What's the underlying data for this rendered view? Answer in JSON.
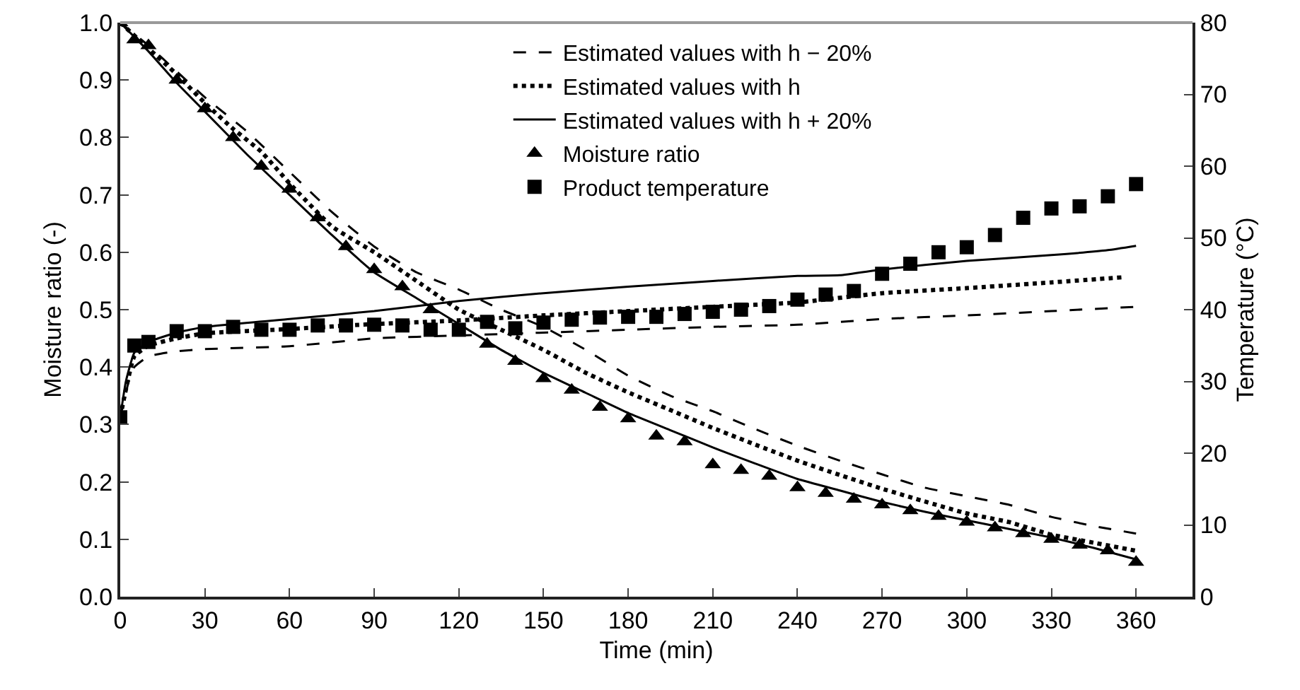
{
  "chart_data": {
    "type": "line",
    "xlabel": "Time (min)",
    "ylabel": "Moisture ratio (-)",
    "y2label": "Temperature (°C)",
    "xlim": [
      0,
      380
    ],
    "xticks": [
      0,
      30,
      60,
      90,
      120,
      150,
      180,
      210,
      240,
      270,
      300,
      330,
      360
    ],
    "ylim": [
      0,
      1
    ],
    "yticks": [
      {
        "value": 0,
        "label": "0.0"
      },
      0.1,
      0.2,
      0.3,
      0.4,
      0.5,
      0.6,
      0.7,
      0.8,
      0.9,
      {
        "value": 1,
        "label": "1.0"
      }
    ],
    "y2lim": [
      0,
      80
    ],
    "y2ticks": [
      0,
      10,
      20,
      30,
      40,
      50,
      60,
      70,
      80
    ],
    "grid": false,
    "legend": "top",
    "series": [
      {
        "name": "Estimated values with h − 20%",
        "line_style": "dashed",
        "color": "#000000",
        "x": [
          0,
          10,
          20,
          30,
          45,
          60,
          75,
          90,
          105,
          120,
          135,
          150,
          165,
          180,
          195,
          210,
          225,
          240,
          255,
          270,
          285,
          300,
          315,
          330,
          345,
          360
        ],
        "values": [
          1.0,
          0.96,
          0.915,
          0.87,
          0.81,
          0.74,
          0.67,
          0.61,
          0.565,
          0.535,
          0.5,
          0.47,
          0.43,
          0.385,
          0.35,
          0.323,
          0.292,
          0.263,
          0.237,
          0.213,
          0.19,
          0.175,
          0.16,
          0.139,
          0.123,
          0.11
        ]
      },
      {
        "name": "Estimated values with h",
        "line_style": "dotted",
        "color": "#000000",
        "x": [
          0,
          10,
          20,
          30,
          40,
          50,
          60,
          75,
          90,
          105,
          120,
          135,
          150,
          165,
          180,
          195,
          210,
          225,
          240,
          255,
          270,
          285,
          300,
          315,
          330,
          345,
          360
        ],
        "values": [
          1.0,
          0.955,
          0.91,
          0.86,
          0.815,
          0.775,
          0.72,
          0.645,
          0.6,
          0.55,
          0.5,
          0.465,
          0.43,
          0.39,
          0.356,
          0.325,
          0.294,
          0.265,
          0.237,
          0.212,
          0.188,
          0.166,
          0.145,
          0.13,
          0.108,
          0.094,
          0.08
        ]
      },
      {
        "name": "Estimated values with h + 20%",
        "line_style": "solid",
        "color": "#000000",
        "x": [
          0,
          10,
          20,
          30,
          45,
          60,
          75,
          90,
          105,
          120,
          135,
          150,
          165,
          180,
          195,
          210,
          225,
          240,
          255,
          270,
          285,
          300,
          315,
          330,
          345,
          360
        ],
        "values": [
          1.0,
          0.95,
          0.895,
          0.845,
          0.77,
          0.7,
          0.63,
          0.565,
          0.52,
          0.475,
          0.43,
          0.39,
          0.355,
          0.32,
          0.29,
          0.26,
          0.232,
          0.205,
          0.185,
          0.165,
          0.148,
          0.133,
          0.118,
          0.103,
          0.085,
          0.065
        ]
      },
      {
        "name": "Moisture ratio",
        "type": "scatter",
        "marker": "triangle",
        "color": "#000000",
        "x": [
          0,
          5,
          10,
          20,
          30,
          40,
          50,
          60,
          70,
          80,
          90,
          100,
          110,
          130,
          140,
          150,
          160,
          170,
          180,
          190,
          200,
          210,
          220,
          230,
          240,
          250,
          260,
          270,
          280,
          290,
          300,
          310,
          320,
          330,
          340,
          350,
          360
        ],
        "values": [
          1.0,
          0.97,
          0.96,
          0.9,
          0.85,
          0.8,
          0.75,
          0.71,
          0.66,
          0.61,
          0.57,
          0.54,
          0.5,
          0.44,
          0.41,
          0.38,
          0.36,
          0.33,
          0.31,
          0.28,
          0.27,
          0.23,
          0.22,
          0.21,
          0.19,
          0.18,
          0.17,
          0.16,
          0.15,
          0.14,
          0.13,
          0.12,
          0.11,
          0.1,
          0.09,
          0.08,
          0.06
        ]
      },
      {
        "name": "Product temperature",
        "type": "scatter",
        "marker": "square",
        "axis": "y2",
        "color": "#000000",
        "x": [
          0,
          5,
          10,
          20,
          30,
          40,
          50,
          60,
          70,
          80,
          90,
          100,
          110,
          120,
          130,
          140,
          150,
          160,
          170,
          180,
          190,
          200,
          210,
          220,
          230,
          240,
          250,
          260,
          270,
          280,
          290,
          300,
          310,
          320,
          330,
          340,
          350,
          360
        ],
        "values": [
          25,
          35,
          35.5,
          37,
          37,
          37.6,
          37.2,
          37.2,
          37.8,
          37.8,
          37.9,
          37.8,
          37.2,
          37.2,
          38.3,
          37.4,
          38.2,
          38.6,
          38.9,
          39,
          39,
          39.4,
          39.7,
          40,
          40.5,
          41.4,
          42.1,
          42.6,
          45,
          46.4,
          48,
          48.7,
          50.4,
          52.8,
          54.1,
          54.4,
          55.8,
          57.5
        ]
      },
      {
        "line_style": "dashed",
        "axis": "y2",
        "color": "#000000",
        "x": [
          0,
          3,
          5,
          10,
          20,
          30,
          60,
          90,
          120,
          150,
          180,
          210,
          240,
          270,
          300,
          330,
          360
        ],
        "values": [
          25,
          30,
          32,
          33.5,
          34.2,
          34.5,
          34.9,
          36,
          36.4,
          36.8,
          37.2,
          37.6,
          37.9,
          38.7,
          39.2,
          39.8,
          40.4
        ]
      },
      {
        "line_style": "dotted",
        "axis": "y2",
        "color": "#000000",
        "x": [
          0,
          5,
          10,
          20,
          30,
          60,
          90,
          120,
          150,
          180,
          210,
          240,
          270,
          300,
          330,
          355
        ],
        "values": [
          25,
          33.5,
          35,
          36,
          36.7,
          37.3,
          38,
          38.5,
          39.2,
          39.8,
          40.4,
          41,
          42.3,
          43,
          43.8,
          44.5
        ]
      },
      {
        "line_style": "solid",
        "axis": "y2",
        "color": "#000000",
        "x": [
          0,
          2,
          5,
          10,
          20,
          30,
          60,
          90,
          120,
          150,
          180,
          210,
          240,
          255,
          270,
          300,
          330,
          350,
          360
        ],
        "values": [
          25,
          30,
          34,
          35.5,
          36.8,
          37.6,
          38.7,
          39.8,
          41.2,
          42.3,
          43.2,
          44,
          44.7,
          44.8,
          45.6,
          46.8,
          47.6,
          48.3,
          48.9
        ]
      }
    ]
  }
}
